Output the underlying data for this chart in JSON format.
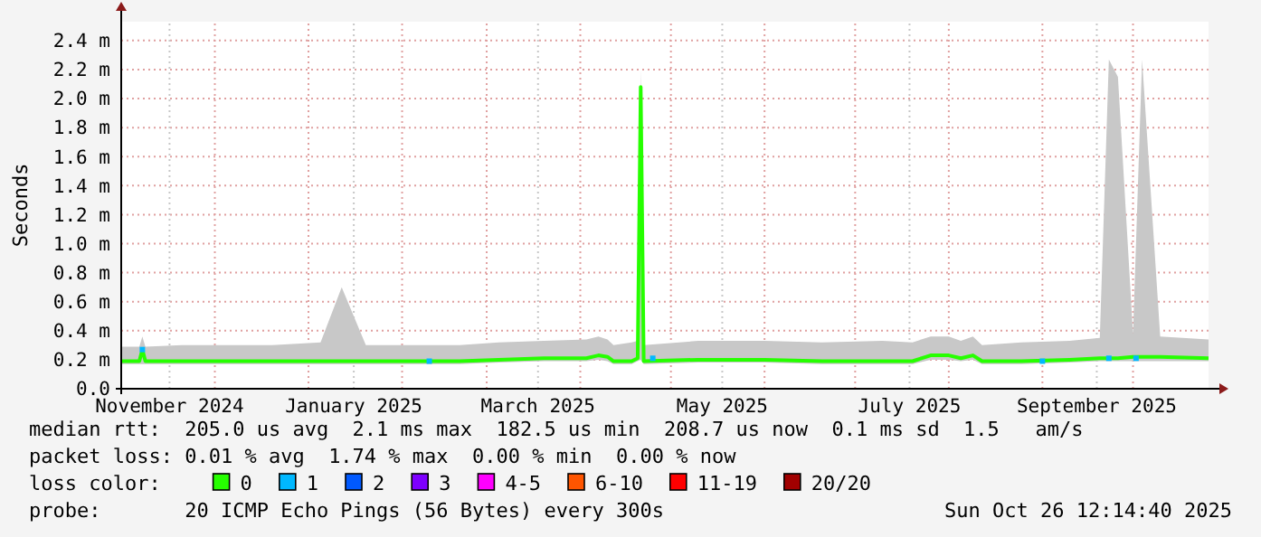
{
  "chart_data": {
    "type": "line",
    "ylabel": "Seconds",
    "xlim": [
      "2024-10-31",
      "2025-10-26"
    ],
    "ylim": [
      0,
      2.53
    ],
    "xticks": [
      {
        "value": "2024-11-16",
        "label": "November 2024"
      },
      {
        "value": "2024-12-01",
        "label": null
      },
      {
        "value": "2025-01-01",
        "label": null
      },
      {
        "value": "2025-01-16",
        "label": "January 2025"
      },
      {
        "value": "2025-02-01",
        "label": null
      },
      {
        "value": "2025-03-01",
        "label": null
      },
      {
        "value": "2025-03-18",
        "label": "March 2025"
      },
      {
        "value": "2025-04-01",
        "label": null
      },
      {
        "value": "2025-05-01",
        "label": null
      },
      {
        "value": "2025-05-18",
        "label": "May 2025"
      },
      {
        "value": "2025-06-01",
        "label": null
      },
      {
        "value": "2025-07-01",
        "label": null
      },
      {
        "value": "2025-07-19",
        "label": "July 2025"
      },
      {
        "value": "2025-08-01",
        "label": null
      },
      {
        "value": "2025-09-01",
        "label": null
      },
      {
        "value": "2025-09-19",
        "label": "September 2025"
      },
      {
        "value": "2025-10-01",
        "label": null
      }
    ],
    "yticks": [
      {
        "value": 0,
        "label": "0.0"
      },
      {
        "value": 0.2,
        "label": "0.2 m"
      },
      {
        "value": 0.4,
        "label": "0.4 m"
      },
      {
        "value": 0.6,
        "label": "0.6 m"
      },
      {
        "value": 0.8,
        "label": "0.8 m"
      },
      {
        "value": 1.0,
        "label": "1.0 m"
      },
      {
        "value": 1.2,
        "label": "1.2 m"
      },
      {
        "value": 1.4,
        "label": "1.4 m"
      },
      {
        "value": 1.6,
        "label": "1.6 m"
      },
      {
        "value": 1.8,
        "label": "1.8 m"
      },
      {
        "value": 2.0,
        "label": "2.0 m"
      },
      {
        "value": 2.2,
        "label": "2.2 m"
      },
      {
        "value": 2.4,
        "label": "2.4 m"
      }
    ],
    "grid": true,
    "legend": "bottom",
    "legend_title": "loss color:",
    "marker": "none",
    "line_style": "solid",
    "series": [
      {
        "name": "0",
        "color": "#26ff00",
        "x": [
          "2024-10-31",
          "2024-11-06",
          "2024-11-07",
          "2024-11-08",
          "2024-11-20",
          "2024-12-05",
          "2024-12-20",
          "2025-01-05",
          "2025-01-12",
          "2025-01-20",
          "2025-02-05",
          "2025-02-20",
          "2025-03-05",
          "2025-03-20",
          "2025-04-03",
          "2025-04-07",
          "2025-04-10",
          "2025-04-12",
          "2025-04-18",
          "2025-04-20",
          "2025-04-21",
          "2025-04-22",
          "2025-05-10",
          "2025-06-01",
          "2025-06-20",
          "2025-07-10",
          "2025-07-20",
          "2025-07-26",
          "2025-08-01",
          "2025-08-05",
          "2025-08-09",
          "2025-08-12",
          "2025-08-25",
          "2025-09-10",
          "2025-09-20",
          "2025-09-23",
          "2025-09-26",
          "2025-10-01",
          "2025-10-04",
          "2025-10-10",
          "2025-10-26"
        ],
        "values": [
          0.19,
          0.19,
          0.27,
          0.19,
          0.19,
          0.19,
          0.19,
          0.19,
          0.19,
          0.19,
          0.19,
          0.19,
          0.2,
          0.21,
          0.21,
          0.23,
          0.22,
          0.19,
          0.19,
          0.21,
          2.08,
          0.19,
          0.2,
          0.2,
          0.19,
          0.19,
          0.19,
          0.23,
          0.23,
          0.21,
          0.23,
          0.19,
          0.19,
          0.2,
          0.21,
          0.21,
          0.21,
          0.22,
          0.22,
          0.22,
          0.21
        ],
        "lower": [
          0.17,
          0.17,
          0.17,
          0.17,
          0.17,
          0.17,
          0.17,
          0.17,
          0.17,
          0.17,
          0.17,
          0.17,
          0.18,
          0.19,
          0.19,
          0.2,
          0.19,
          0.17,
          0.17,
          0.19,
          0.2,
          0.17,
          0.18,
          0.18,
          0.17,
          0.17,
          0.17,
          0.2,
          0.2,
          0.19,
          0.2,
          0.17,
          0.17,
          0.18,
          0.19,
          0.19,
          0.19,
          0.19,
          0.19,
          0.19,
          0.19
        ],
        "upper": [
          0.29,
          0.29,
          0.36,
          0.29,
          0.3,
          0.3,
          0.3,
          0.32,
          0.7,
          0.3,
          0.3,
          0.3,
          0.32,
          0.33,
          0.34,
          0.36,
          0.34,
          0.3,
          0.32,
          0.33,
          2.2,
          0.3,
          0.33,
          0.33,
          0.32,
          0.33,
          0.32,
          0.36,
          0.36,
          0.33,
          0.36,
          0.3,
          0.32,
          0.33,
          0.35,
          2.27,
          2.15,
          0.38,
          2.27,
          0.36,
          0.34
        ]
      },
      {
        "name": "1",
        "color": "#00b8ff",
        "type": "scatter",
        "marker": "square",
        "x": [
          "2024-11-07",
          "2025-02-10",
          "2025-04-25",
          "2025-09-01",
          "2025-09-23",
          "2025-10-02"
        ],
        "values": [
          0.27,
          0.19,
          0.21,
          0.19,
          0.21,
          0.21
        ]
      },
      {
        "name": "2",
        "color": "#0059ff",
        "type": "scatter"
      },
      {
        "name": "3",
        "color": "#7e00ff",
        "type": "scatter"
      },
      {
        "name": "4-5",
        "color": "#ff00ff",
        "type": "scatter"
      },
      {
        "name": "6-10",
        "color": "#ff5500",
        "type": "scatter"
      },
      {
        "name": "11-19",
        "color": "#ff0000",
        "type": "scatter"
      },
      {
        "name": "20/20",
        "color": "#a10000",
        "type": "scatter"
      }
    ],
    "annotations": [
      "median rtt:  205.0 us avg  2.1 ms max  182.5 us min  208.7 us now  0.1 ms sd  1.5   am/s",
      "packet loss: 0.01 % avg  1.74 % max  0.00 % min  0.00 % now",
      "probe:       20 ICMP Echo Pings (56 Bytes) every 300s",
      "Sun Oct 26 12:14:40 2025"
    ]
  }
}
